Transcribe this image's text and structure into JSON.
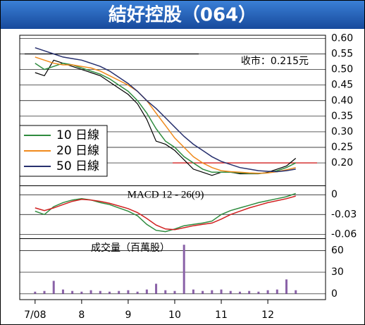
{
  "title": "結好控股（064）",
  "chart_data": [
    {
      "type": "line",
      "annotation": "收市：0.215元",
      "x": [
        7.0,
        7.2,
        7.4,
        7.6,
        7.8,
        8.0,
        8.2,
        8.4,
        8.6,
        8.8,
        9.0,
        9.2,
        9.4,
        9.6,
        9.8,
        10.0,
        10.2,
        10.4,
        10.6,
        10.8,
        11.0,
        11.2,
        11.4,
        11.6,
        11.8,
        12.0,
        12.2,
        12.4,
        12.6
      ],
      "values": [
        0.49,
        0.48,
        0.53,
        0.52,
        0.51,
        0.5,
        0.49,
        0.48,
        0.46,
        0.44,
        0.42,
        0.39,
        0.34,
        0.27,
        0.26,
        0.24,
        0.21,
        0.18,
        0.17,
        0.16,
        0.17,
        0.17,
        0.165,
        0.165,
        0.165,
        0.17,
        0.18,
        0.19,
        0.215
      ],
      "color": "#000000",
      "series": [
        {
          "name": "10 日線",
          "color": "#2e8b3e",
          "values": [
            0.52,
            0.5,
            0.51,
            0.52,
            0.515,
            0.505,
            0.495,
            0.485,
            0.47,
            0.45,
            0.43,
            0.4,
            0.36,
            0.31,
            0.27,
            0.25,
            0.22,
            0.2,
            0.18,
            0.17,
            0.17,
            0.17,
            0.168,
            0.166,
            0.166,
            0.168,
            0.175,
            0.185,
            0.2
          ]
        },
        {
          "name": "20 日線",
          "color": "#f08a1c",
          "values": [
            0.54,
            0.53,
            0.52,
            0.515,
            0.515,
            0.51,
            0.505,
            0.495,
            0.48,
            0.465,
            0.45,
            0.43,
            0.4,
            0.36,
            0.32,
            0.28,
            0.25,
            0.22,
            0.2,
            0.185,
            0.175,
            0.172,
            0.17,
            0.168,
            0.167,
            0.168,
            0.172,
            0.178,
            0.185
          ]
        },
        {
          "name": "50 日線",
          "color": "#27306e",
          "values": [
            0.57,
            0.56,
            0.55,
            0.54,
            0.535,
            0.53,
            0.52,
            0.51,
            0.495,
            0.475,
            0.455,
            0.43,
            0.4,
            0.375,
            0.345,
            0.315,
            0.285,
            0.26,
            0.24,
            0.22,
            0.205,
            0.195,
            0.185,
            0.18,
            0.175,
            0.173,
            0.172,
            0.175,
            0.18
          ]
        }
      ],
      "reference_lines": [
        {
          "value": 0.55,
          "color": "#000000"
        },
        {
          "value": 0.2,
          "color": "#d02020"
        }
      ],
      "xlim": [
        6.67,
        13.24
      ],
      "ylim": [
        0.13,
        0.61
      ],
      "yticks": [
        {
          "value": 0.2,
          "label": "0.20"
        },
        0.25,
        {
          "value": 0.3,
          "label": "0.30"
        },
        0.35,
        {
          "value": 0.4,
          "label": "0.40"
        },
        0.45,
        {
          "value": 0.5,
          "label": "0.50"
        },
        0.55,
        {
          "value": 0.6,
          "label": "0.60"
        }
      ],
      "grid": true
    },
    {
      "type": "line",
      "title": "MACD 12 - 26(9)",
      "x": [
        7.0,
        7.2,
        7.4,
        7.6,
        7.8,
        8.0,
        8.2,
        8.4,
        8.6,
        8.8,
        9.0,
        9.2,
        9.4,
        9.6,
        9.8,
        10.0,
        10.2,
        10.4,
        10.6,
        10.8,
        11.0,
        11.2,
        11.4,
        11.6,
        11.8,
        12.0,
        12.2,
        12.4,
        12.6
      ],
      "series": [
        {
          "color": "#2e8b3e",
          "values": [
            -0.025,
            -0.03,
            -0.018,
            -0.012,
            -0.008,
            -0.006,
            -0.008,
            -0.012,
            -0.015,
            -0.02,
            -0.025,
            -0.032,
            -0.045,
            -0.054,
            -0.056,
            -0.052,
            -0.047,
            -0.045,
            -0.043,
            -0.04,
            -0.03,
            -0.024,
            -0.02,
            -0.016,
            -0.012,
            -0.009,
            -0.006,
            -0.003,
            0.002
          ]
        },
        {
          "color": "#d02020",
          "values": [
            -0.02,
            -0.024,
            -0.02,
            -0.015,
            -0.01,
            -0.007,
            -0.008,
            -0.01,
            -0.013,
            -0.017,
            -0.021,
            -0.027,
            -0.036,
            -0.046,
            -0.052,
            -0.053,
            -0.05,
            -0.047,
            -0.045,
            -0.043,
            -0.037,
            -0.03,
            -0.025,
            -0.02,
            -0.016,
            -0.012,
            -0.009,
            -0.006,
            -0.002
          ]
        }
      ],
      "xlim": [
        6.67,
        13.24
      ],
      "ylim": [
        -0.065,
        0.012
      ],
      "yticks": [
        0,
        -0.03,
        -0.06
      ],
      "grid": true
    },
    {
      "type": "bar",
      "title": "成交量（百萬股）",
      "x": [
        7.0,
        7.2,
        7.4,
        7.6,
        7.8,
        8.0,
        8.2,
        8.4,
        8.6,
        8.8,
        9.0,
        9.2,
        9.4,
        9.6,
        9.8,
        10.0,
        10.2,
        10.4,
        10.6,
        10.8,
        11.0,
        11.2,
        11.4,
        11.6,
        11.8,
        12.0,
        12.2,
        12.4,
        12.6
      ],
      "values": [
        3,
        4,
        18,
        6,
        4,
        3,
        5,
        4,
        3,
        4,
        5,
        3,
        6,
        14,
        5,
        4,
        68,
        6,
        4,
        5,
        6,
        4,
        3,
        4,
        3,
        5,
        6,
        20,
        5
      ],
      "color": "#8a62a8",
      "xlim": [
        6.67,
        13.24
      ],
      "ylim": [
        -8,
        75
      ],
      "yticks": [
        0,
        30,
        60
      ],
      "xticks": [
        {
          "value": 7,
          "label": "7/08"
        },
        8,
        9,
        10,
        11,
        12
      ],
      "grid": true
    }
  ]
}
